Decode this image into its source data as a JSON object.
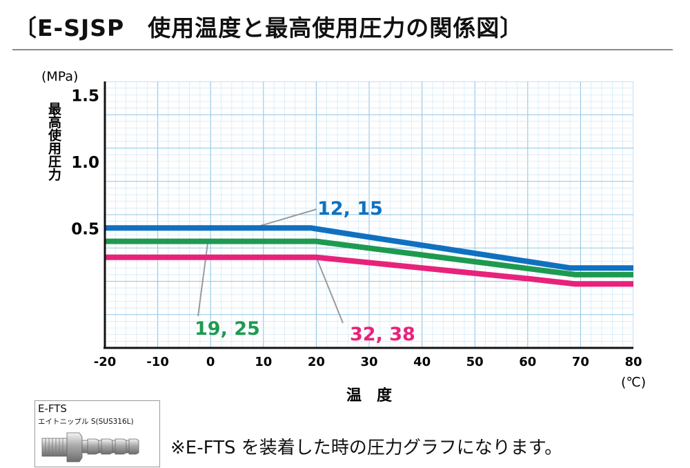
{
  "page": {
    "title": "〔E-SJSP　使用温度と最高使用圧力の関係図〕",
    "note": "※E-FTS を装着した時の圧力グラフになります。",
    "inset": {
      "code": "E-FTS",
      "name": "エイトニップル S(SUS316L)",
      "icon": "hose-nipple-fitting"
    }
  },
  "chart_data": {
    "type": "line",
    "title": "",
    "xlabel": "温　度",
    "ylabel": "最高使用圧力",
    "x_unit": "(℃)",
    "y_unit": "(MPa)",
    "xlim": [
      -20,
      80
    ],
    "ylim": [
      -0.4,
      1.6
    ],
    "x_ticks": [
      -20,
      -10,
      0,
      10,
      20,
      30,
      40,
      50,
      60,
      70,
      80
    ],
    "y_ticks": [
      0.5,
      1.0,
      1.5
    ],
    "x_tick_labels": [
      "-20",
      "-10",
      "0",
      "10",
      "20",
      "30",
      "40",
      "50",
      "60",
      "70",
      "80"
    ],
    "y_tick_labels": [
      "0.5",
      "1.0",
      "1.5"
    ],
    "grid": true,
    "series": [
      {
        "name": "12, 15",
        "color": "#1070c0",
        "x": [
          -20,
          19,
          27,
          68,
          80
        ],
        "y": [
          0.5,
          0.5,
          0.45,
          0.2,
          0.2
        ]
      },
      {
        "name": "19, 25",
        "color": "#1e9a50",
        "x": [
          -20,
          20,
          69,
          80
        ],
        "y": [
          0.4,
          0.4,
          0.15,
          0.15
        ]
      },
      {
        "name": "32, 38",
        "color": "#e8227a",
        "x": [
          -20,
          20,
          60,
          69,
          80
        ],
        "y": [
          0.28,
          0.28,
          0.12,
          0.08,
          0.08
        ]
      }
    ]
  }
}
